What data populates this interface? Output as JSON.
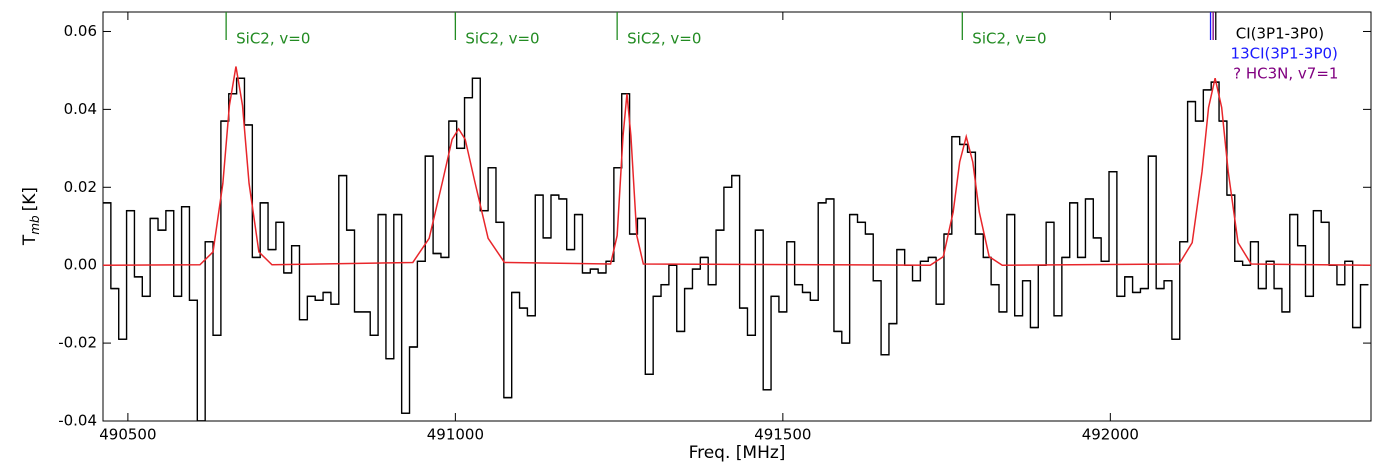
{
  "chart_data": {
    "type": "spectrum",
    "xlabel": "Freq. [MHz]",
    "ylabel": "T",
    "ylabel_sub": "mb",
    "ylabel_unit": "[K]",
    "xlim": [
      490462,
      492398
    ],
    "ylim": [
      -0.04,
      0.065
    ],
    "xticks": [
      490500,
      491000,
      491500,
      492000
    ],
    "yticks": [
      -0.04,
      -0.02,
      {
        "value": 0,
        "label": "0.00"
      },
      0.02,
      0.04,
      0.06
    ],
    "series": [
      {
        "name": "data",
        "color": "#000000",
        "style": "step",
        "x": [
          490468,
          490480,
          490492,
          490504,
          490516,
          490528,
          490540,
          490552,
          490564,
          490576,
          490588,
          490600,
          490612,
          490624,
          490636,
          490648,
          490660,
          490672,
          490684,
          490696,
          490708,
          490720,
          490732,
          490744,
          490756,
          490768,
          490780,
          490792,
          490804,
          490816,
          490828,
          490840,
          490852,
          490864,
          490876,
          490888,
          490900,
          490912,
          490924,
          490936,
          490948,
          490960,
          490972,
          490984,
          490996,
          491008,
          491020,
          491032,
          491044,
          491056,
          491068,
          491080,
          491092,
          491104,
          491116,
          491128,
          491140,
          491152,
          491164,
          491176,
          491188,
          491200,
          491212,
          491224,
          491236,
          491248,
          491260,
          491272,
          491284,
          491296,
          491308,
          491320,
          491332,
          491344,
          491356,
          491368,
          491380,
          491392,
          491404,
          491416,
          491428,
          491440,
          491452,
          491464,
          491476,
          491488,
          491500,
          491512,
          491524,
          491536,
          491548,
          491560,
          491572,
          491584,
          491596,
          491608,
          491620,
          491632,
          491644,
          491656,
          491668,
          491680,
          491692,
          491704,
          491716,
          491728,
          491740,
          491752,
          491764,
          491776,
          491788,
          491800,
          491812,
          491824,
          491836,
          491848,
          491860,
          491872,
          491884,
          491896,
          491908,
          491920,
          491932,
          491944,
          491956,
          491968,
          491980,
          491992,
          492004,
          492016,
          492028,
          492040,
          492052,
          492064,
          492076,
          492088,
          492100,
          492112,
          492124,
          492136,
          492148,
          492160,
          492172,
          492184,
          492196,
          492208,
          492220,
          492232,
          492244,
          492256,
          492268,
          492280,
          492292,
          492304,
          492316,
          492328,
          492340,
          492352,
          492364,
          492376,
          492388
        ],
        "values": [
          0.016,
          -0.006,
          -0.019,
          0.014,
          -0.003,
          -0.008,
          0.012,
          0.009,
          0.014,
          -0.008,
          0.015,
          -0.009,
          -0.04,
          0.006,
          -0.018,
          0.037,
          0.044,
          0.048,
          0.036,
          0.002,
          0.016,
          0.004,
          0.011,
          -0.002,
          0.005,
          -0.014,
          -0.008,
          -0.009,
          -0.007,
          -0.01,
          0.023,
          0.009,
          -0.012,
          -0.012,
          -0.018,
          0.013,
          -0.024,
          0.013,
          -0.038,
          -0.021,
          0.001,
          0.028,
          0.003,
          0.002,
          0.037,
          0.03,
          0.043,
          0.048,
          0.014,
          0.025,
          0.011,
          -0.034,
          -0.007,
          -0.011,
          -0.013,
          0.018,
          0.007,
          0.018,
          0.017,
          0.004,
          0.013,
          -0.002,
          -0.001,
          -0.002,
          0.001,
          0.025,
          0.044,
          0.008,
          0.012,
          -0.028,
          -0.008,
          -0.005,
          0.0,
          -0.017,
          -0.006,
          -0.001,
          0.002,
          -0.005,
          0.009,
          0.02,
          0.023,
          -0.011,
          -0.018,
          0.009,
          -0.032,
          -0.008,
          -0.012,
          0.006,
          -0.005,
          -0.007,
          -0.009,
          0.016,
          0.017,
          -0.017,
          -0.02,
          0.013,
          0.011,
          0.008,
          -0.004,
          -0.023,
          -0.015,
          0.004,
          0.0,
          -0.004,
          0.001,
          0.002,
          -0.01,
          0.008,
          0.033,
          0.031,
          0.029,
          0.008,
          0.002,
          -0.005,
          -0.012,
          0.013,
          -0.013,
          -0.004,
          -0.016,
          0.0,
          0.011,
          -0.013,
          0.002,
          0.016,
          0.002,
          0.017,
          0.007,
          0.001,
          0.024,
          -0.008,
          -0.003,
          -0.007,
          -0.006,
          0.028,
          -0.006,
          -0.004,
          -0.019,
          0.006,
          0.042,
          0.037,
          0.045,
          0.047,
          0.037,
          0.018,
          0.001,
          0.0,
          0.006,
          -0.006,
          0.001,
          -0.006,
          -0.012,
          0.013,
          0.005,
          -0.008,
          0.014,
          0.011,
          0.0,
          -0.005,
          0.001,
          -0.016,
          -0.005
        ]
      },
      {
        "name": "fit",
        "color": "#e8262b",
        "style": "line",
        "x": [
          490462,
          490610,
          490630,
          490645,
          490655,
          490665,
          490675,
          490685,
          490700,
          490720,
          490935,
          490960,
          490980,
          490995,
          491005,
          491015,
          491030,
          491050,
          491075,
          491237,
          491247,
          491256,
          491262,
          491268,
          491277,
          491287,
          491725,
          491745,
          491760,
          491770,
          491780,
          491790,
          491800,
          491815,
          491835,
          492105,
          492125,
          492140,
          492150,
          492160,
          492170,
          492180,
          492195,
          492215,
          492398
        ],
        "values": [
          0,
          0.0001,
          0.0034,
          0.021,
          0.041,
          0.051,
          0.041,
          0.021,
          0.0034,
          0.0001,
          0.0007,
          0.0069,
          0.0212,
          0.0323,
          0.035,
          0.0323,
          0.0212,
          0.0069,
          0.0007,
          0.0003,
          0.0076,
          0.0332,
          0.044,
          0.0332,
          0.0076,
          0.0003,
          0,
          0.0022,
          0.0136,
          0.0265,
          0.033,
          0.0265,
          0.0136,
          0.0022,
          0,
          0.0003,
          0.0058,
          0.024,
          0.0405,
          0.048,
          0.0405,
          0.024,
          0.0058,
          0.0003,
          0
        ]
      }
    ],
    "lines": [
      {
        "x": 490650,
        "label": "SiC2, v=0",
        "color": "#228b22"
      },
      {
        "x": 491000,
        "label": "SiC2, v=0",
        "color": "#228b22"
      },
      {
        "x": 491247,
        "label": "SiC2, v=0",
        "color": "#228b22"
      },
      {
        "x": 491774,
        "label": "SiC2, v=0",
        "color": "#228b22"
      },
      {
        "x": 492161,
        "label": "CI(3P1-3P0)",
        "color": "#000000"
      },
      {
        "x": 492153,
        "label": "13CI(3P1-3P0)",
        "color": "#1a1aff"
      },
      {
        "x": 492157,
        "label": "? HC3N, v7=1",
        "color": "#800080"
      }
    ]
  }
}
